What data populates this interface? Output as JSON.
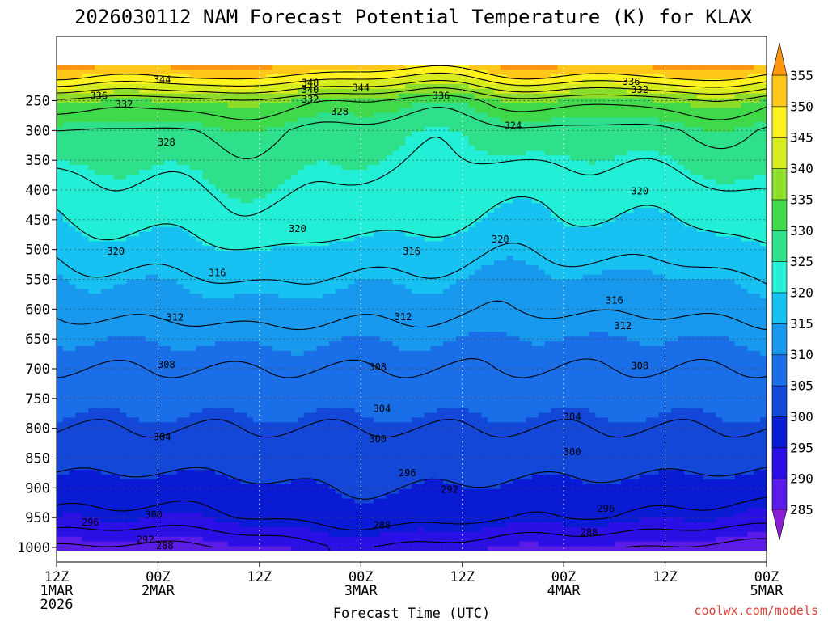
{
  "chart_data": {
    "type": "contour",
    "title": "2026030112 NAM Forecast Potential Temperature (K) for KLAX",
    "xlabel": "Forecast Time (UTC)",
    "ylabel": "",
    "credit": "coolwx.com/models",
    "x_range_hours": [
      0,
      84
    ],
    "x_ticks": [
      {
        "hour": 0,
        "lines": [
          "12Z",
          "1MAR",
          "2026"
        ]
      },
      {
        "hour": 12,
        "lines": [
          "00Z",
          "2MAR"
        ]
      },
      {
        "hour": 24,
        "lines": [
          "12Z"
        ]
      },
      {
        "hour": 36,
        "lines": [
          "00Z",
          "3MAR"
        ]
      },
      {
        "hour": 48,
        "lines": [
          "12Z"
        ]
      },
      {
        "hour": 60,
        "lines": [
          "00Z",
          "4MAR"
        ]
      },
      {
        "hour": 72,
        "lines": [
          "12Z"
        ]
      },
      {
        "hour": 84,
        "lines": [
          "00Z",
          "5MAR"
        ]
      }
    ],
    "y_axis": {
      "units": "hPa",
      "ticks": [
        250,
        300,
        350,
        400,
        450,
        500,
        550,
        600,
        650,
        700,
        750,
        800,
        850,
        900,
        950,
        1000
      ],
      "tick_labels": [
        "250",
        "300",
        "350",
        "400",
        "450",
        "500",
        "550",
        "600",
        "650",
        "700",
        "750",
        "800",
        "850",
        "900",
        "950",
        "1000"
      ]
    },
    "colorbar": {
      "levels": [
        285,
        290,
        295,
        300,
        305,
        310,
        315,
        320,
        325,
        330,
        335,
        340,
        345,
        350,
        355
      ],
      "labels": [
        "285",
        "290",
        "295",
        "300",
        "305",
        "310",
        "315",
        "320",
        "325",
        "330",
        "335",
        "340",
        "345",
        "350",
        "355"
      ],
      "colors": [
        "#8a1fd6",
        "#5b1be8",
        "#2b10e6",
        "#0a1bd4",
        "#1247d8",
        "#1a6ee8",
        "#1899ee",
        "#17c2f3",
        "#23eed6",
        "#2ee08a",
        "#3fd94a",
        "#8cdc2a",
        "#d7ec1e",
        "#fff21e",
        "#ffc81a",
        "#ff9612"
      ]
    },
    "contour_interval_K": 4,
    "contour_levels": [
      288,
      292,
      296,
      300,
      304,
      308,
      312,
      316,
      320,
      324,
      328,
      332,
      336,
      340,
      344,
      348
    ],
    "contour_labels": [
      "288",
      "292",
      "296",
      "300",
      "304",
      "308",
      "312",
      "316",
      "320",
      "324",
      "328",
      "332",
      "336",
      "340",
      "344",
      "348"
    ],
    "theta_profile_hour0": [
      {
        "p": 200,
        "theta": 350
      },
      {
        "p": 250,
        "theta": 333
      },
      {
        "p": 300,
        "theta": 327
      },
      {
        "p": 350,
        "theta": 325
      },
      {
        "p": 400,
        "theta": 323
      },
      {
        "p": 450,
        "theta": 321
      },
      {
        "p": 500,
        "theta": 318
      },
      {
        "p": 550,
        "theta": 315
      },
      {
        "p": 600,
        "theta": 313
      },
      {
        "p": 650,
        "theta": 310
      },
      {
        "p": 700,
        "theta": 308
      },
      {
        "p": 750,
        "theta": 306
      },
      {
        "p": 800,
        "theta": 304
      },
      {
        "p": 850,
        "theta": 302
      },
      {
        "p": 900,
        "theta": 299
      },
      {
        "p": 950,
        "theta": 296
      },
      {
        "p": 1000,
        "theta": 289
      }
    ],
    "annotations": [
      {
        "text": "344",
        "hour": 12.5,
        "p": 215
      },
      {
        "text": "348",
        "hour": 30,
        "p": 220
      },
      {
        "text": "344",
        "hour": 36,
        "p": 228
      },
      {
        "text": "340",
        "hour": 30,
        "p": 232
      },
      {
        "text": "336",
        "hour": 5,
        "p": 242
      },
      {
        "text": "336",
        "hour": 45.5,
        "p": 242
      },
      {
        "text": "336",
        "hour": 68,
        "p": 218
      },
      {
        "text": "332",
        "hour": 69,
        "p": 232
      },
      {
        "text": "332",
        "hour": 8,
        "p": 256
      },
      {
        "text": "332",
        "hour": 30,
        "p": 248
      },
      {
        "text": "328",
        "hour": 33.5,
        "p": 268
      },
      {
        "text": "328",
        "hour": 13,
        "p": 320
      },
      {
        "text": "324",
        "hour": 54,
        "p": 292
      },
      {
        "text": "320",
        "hour": 28.5,
        "p": 465
      },
      {
        "text": "320",
        "hour": 69,
        "p": 402
      },
      {
        "text": "320",
        "hour": 52.5,
        "p": 483
      },
      {
        "text": "320",
        "hour": 7,
        "p": 503
      },
      {
        "text": "316",
        "hour": 19,
        "p": 539
      },
      {
        "text": "316",
        "hour": 42,
        "p": 503
      },
      {
        "text": "316",
        "hour": 66,
        "p": 585
      },
      {
        "text": "312",
        "hour": 14,
        "p": 614
      },
      {
        "text": "312",
        "hour": 41,
        "p": 613
      },
      {
        "text": "312",
        "hour": 67,
        "p": 628
      },
      {
        "text": "308",
        "hour": 13,
        "p": 693
      },
      {
        "text": "308",
        "hour": 38,
        "p": 697
      },
      {
        "text": "308",
        "hour": 69,
        "p": 695
      },
      {
        "text": "304",
        "hour": 12.5,
        "p": 815
      },
      {
        "text": "304",
        "hour": 38.5,
        "p": 767
      },
      {
        "text": "304",
        "hour": 61,
        "p": 781
      },
      {
        "text": "300",
        "hour": 38,
        "p": 818
      },
      {
        "text": "300",
        "hour": 61,
        "p": 840
      },
      {
        "text": "296",
        "hour": 41.5,
        "p": 875
      },
      {
        "text": "292",
        "hour": 46.5,
        "p": 903
      },
      {
        "text": "296",
        "hour": 65,
        "p": 935
      },
      {
        "text": "296",
        "hour": 4,
        "p": 958
      },
      {
        "text": "300",
        "hour": 11.5,
        "p": 945
      },
      {
        "text": "292",
        "hour": 10.5,
        "p": 987
      },
      {
        "text": "288",
        "hour": 12.8,
        "p": 997
      },
      {
        "text": "288",
        "hour": 38.5,
        "p": 963
      },
      {
        "text": "288",
        "hour": 63,
        "p": 975
      }
    ]
  }
}
